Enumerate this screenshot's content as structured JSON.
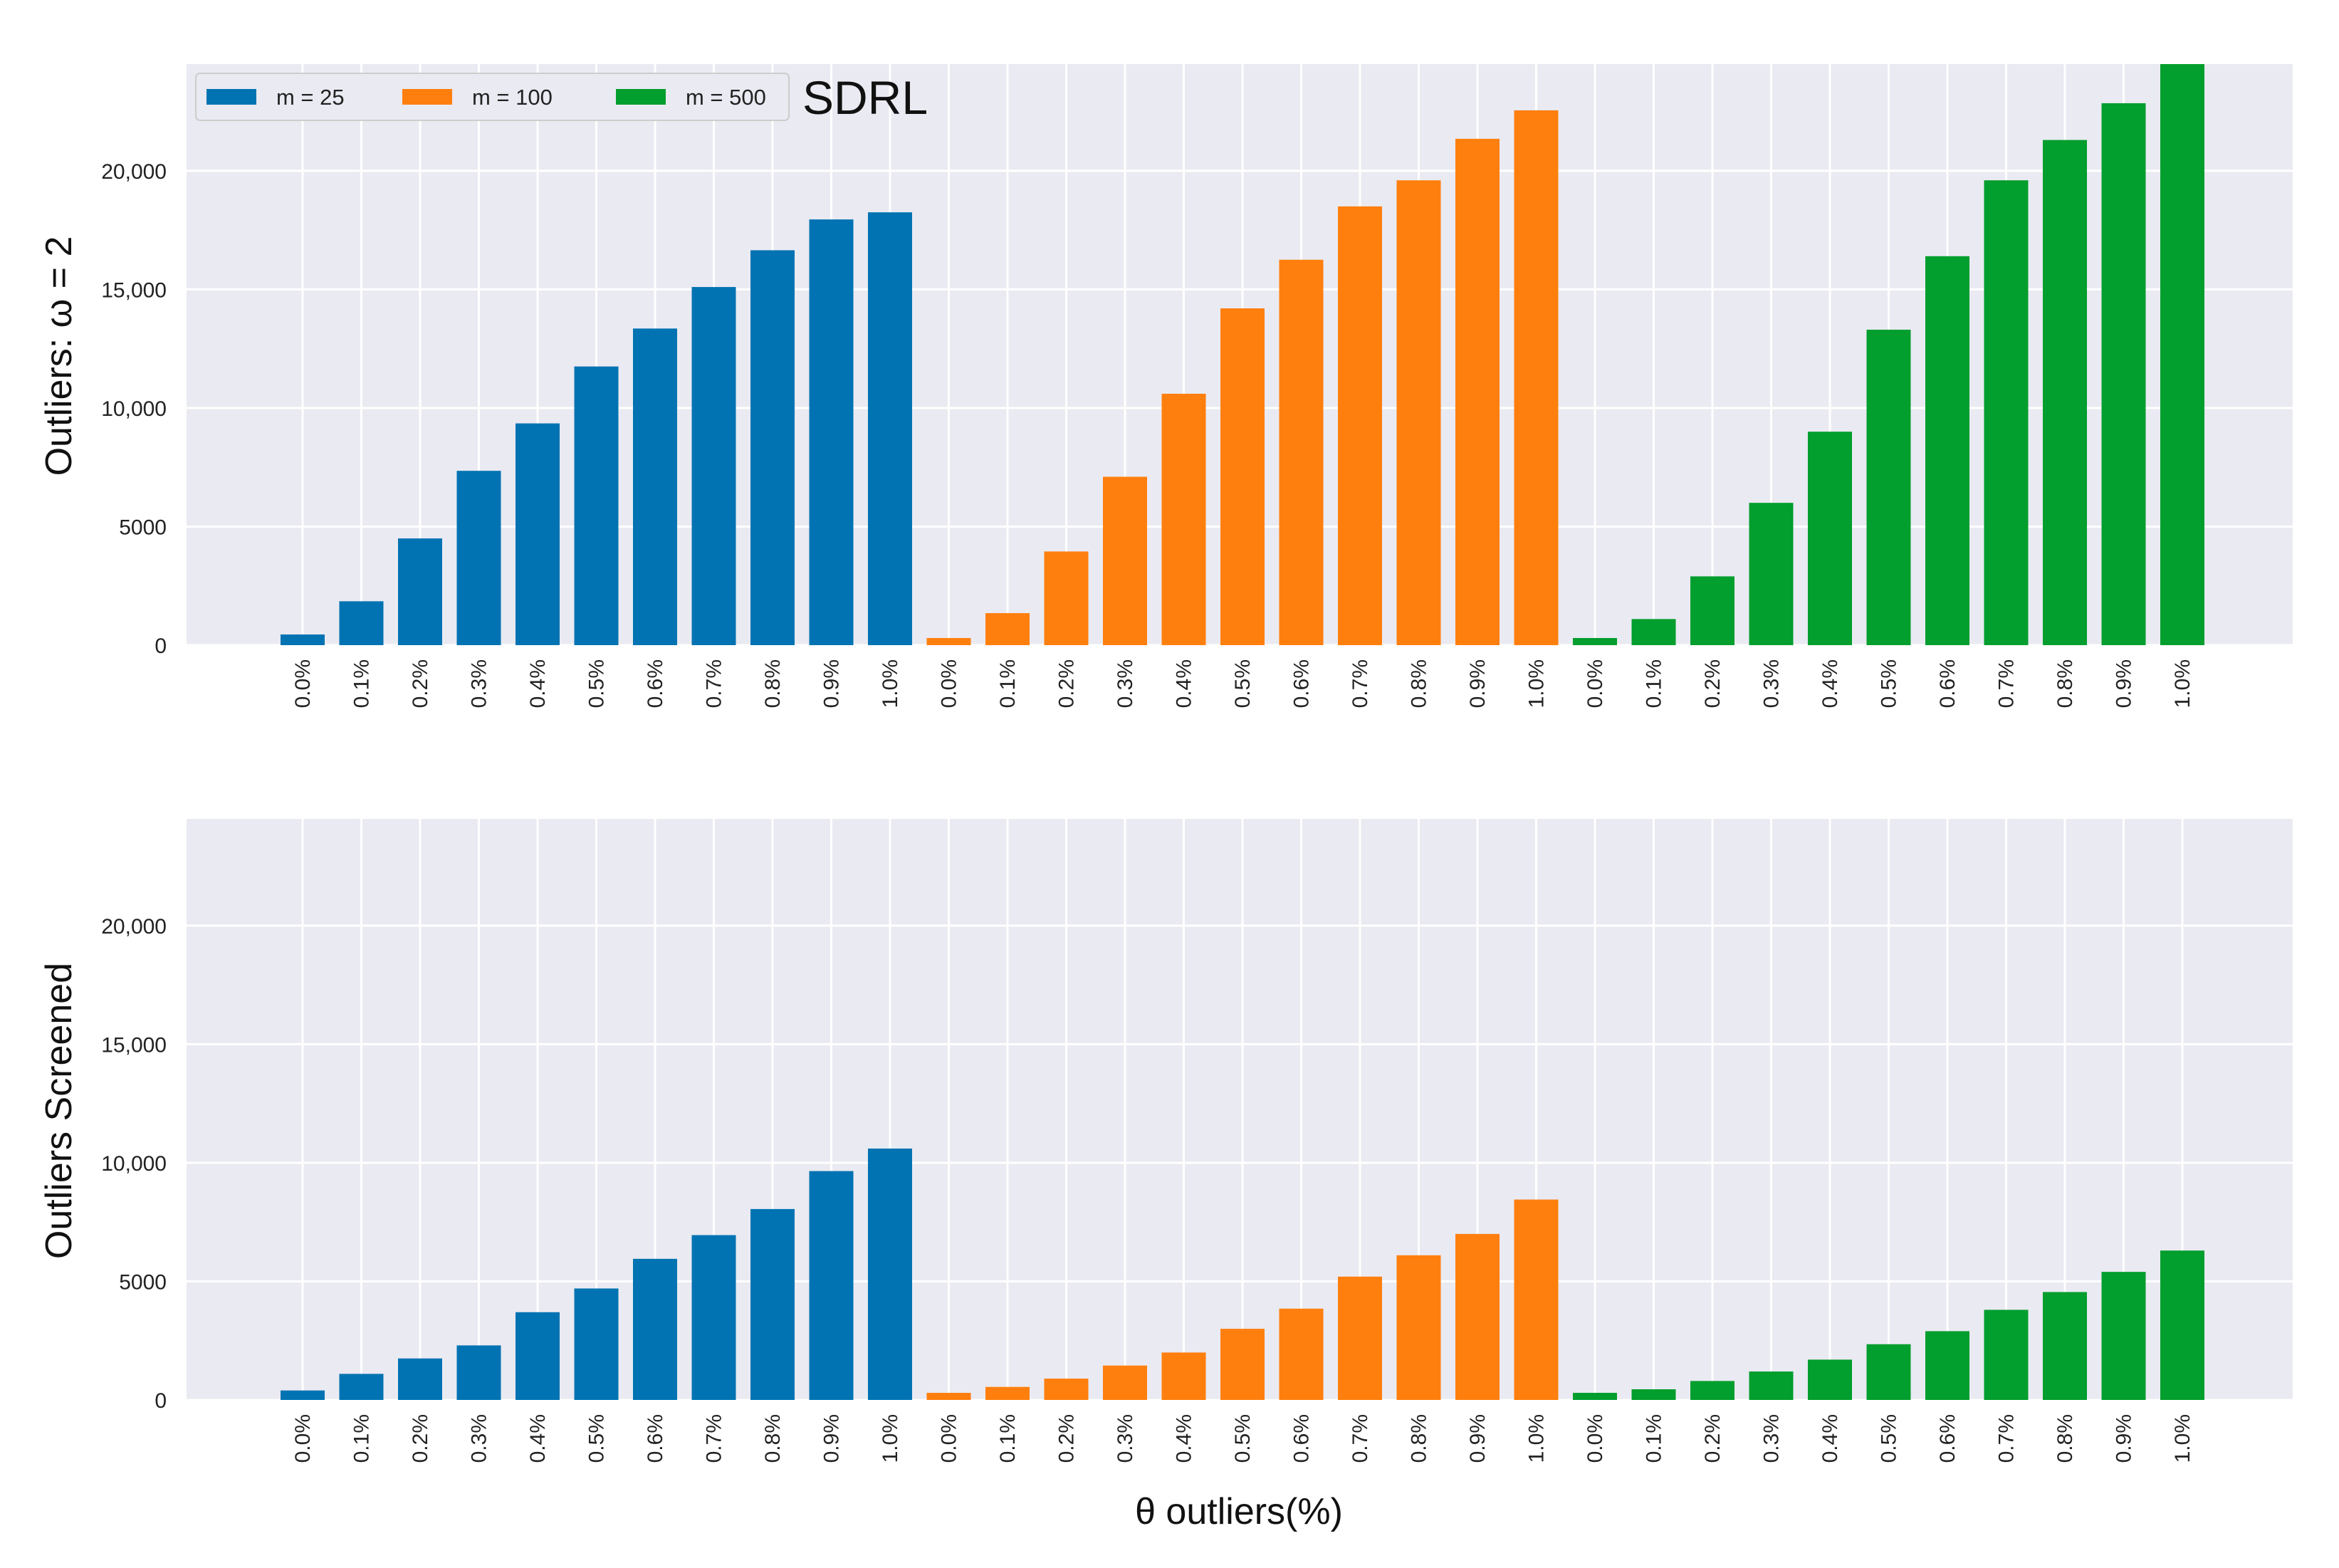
{
  "chart_data": [
    {
      "type": "bar",
      "title": "",
      "annotation": "SDRL",
      "ylabel": "Outliers:  ω = 2",
      "xlabel": "",
      "ylim": [
        0,
        24500
      ],
      "yticks": [
        0,
        5000,
        10000,
        15000,
        20000
      ],
      "ytick_labels": [
        "0",
        "5000",
        "10,000",
        "15,000",
        "20,000"
      ],
      "categories": [
        "0.0%",
        "0.1%",
        "0.2%",
        "0.3%",
        "0.4%",
        "0.5%",
        "0.6%",
        "0.7%",
        "0.8%",
        "0.9%",
        "1.0%"
      ],
      "grid": true,
      "legend": {
        "position": "top-left",
        "entries": [
          {
            "label": "m = 25",
            "color": "#0173b2"
          },
          {
            "label": "m = 100",
            "color": "#ff7f0e"
          },
          {
            "label": "m = 500",
            "color": "#029e2e"
          }
        ]
      },
      "series": [
        {
          "name": "m = 25",
          "color": "#0173b2",
          "values": [
            450,
            1850,
            4500,
            7350,
            9350,
            11750,
            13350,
            15100,
            16650,
            17950,
            18250
          ]
        },
        {
          "name": "m = 100",
          "color": "#ff7f0e",
          "values": [
            300,
            1350,
            3950,
            7100,
            10600,
            14200,
            16250,
            18500,
            19600,
            21350,
            22550
          ]
        },
        {
          "name": "m = 500",
          "color": "#029e2e",
          "values": [
            300,
            1100,
            2900,
            6000,
            9000,
            13300,
            16400,
            19600,
            21300,
            22850,
            24500
          ]
        }
      ]
    },
    {
      "type": "bar",
      "title": "",
      "ylabel": "Outliers Screened",
      "xlabel": "θ outliers(%)",
      "ylim": [
        0,
        24500
      ],
      "yticks": [
        0,
        5000,
        10000,
        15000,
        20000
      ],
      "ytick_labels": [
        "0",
        "5000",
        "10,000",
        "15,000",
        "20,000"
      ],
      "categories": [
        "0.0%",
        "0.1%",
        "0.2%",
        "0.3%",
        "0.4%",
        "0.5%",
        "0.6%",
        "0.7%",
        "0.8%",
        "0.9%",
        "1.0%"
      ],
      "grid": true,
      "series": [
        {
          "name": "m = 25",
          "color": "#0173b2",
          "values": [
            400,
            1100,
            1750,
            2300,
            3700,
            4700,
            5950,
            6950,
            8050,
            9650,
            10600
          ]
        },
        {
          "name": "m = 100",
          "color": "#ff7f0e",
          "values": [
            300,
            550,
            900,
            1450,
            2000,
            3000,
            3850,
            5200,
            6100,
            7000,
            8450
          ]
        },
        {
          "name": "m = 500",
          "color": "#029e2e",
          "values": [
            300,
            450,
            800,
            1200,
            1700,
            2350,
            2900,
            3800,
            4550,
            5400,
            6300
          ]
        }
      ]
    }
  ]
}
